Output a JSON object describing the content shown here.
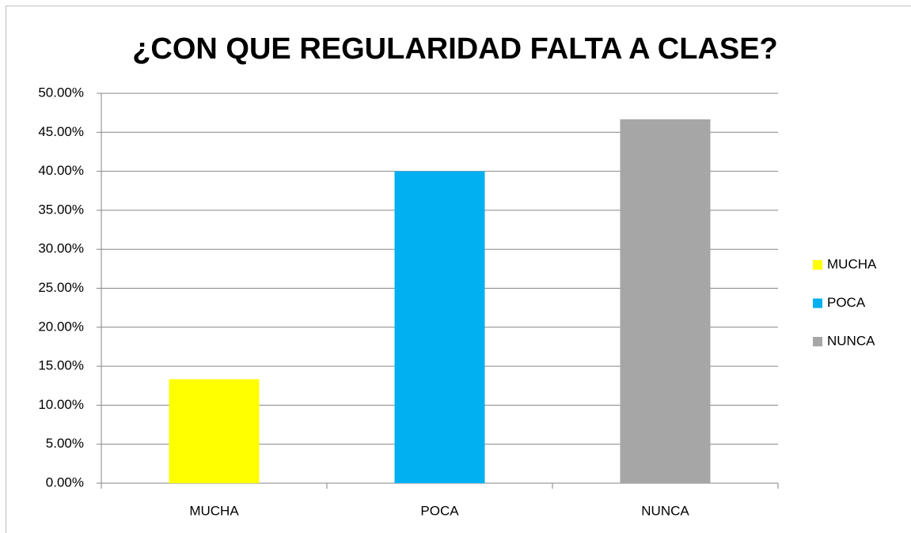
{
  "chart_data": {
    "type": "bar",
    "title": "¿CON QUE REGULARIDAD FALTA A CLASE?",
    "categories": [
      "MUCHA",
      "POCA",
      "NUNCA"
    ],
    "values": [
      13.33,
      40.0,
      46.67
    ],
    "colors": [
      "#ffff00",
      "#00b0f0",
      "#a6a6a6"
    ],
    "ylim": [
      0,
      50
    ],
    "yticks": [
      {
        "value": 0,
        "label": "0.00%"
      },
      {
        "value": 5,
        "label": "5.00%"
      },
      {
        "value": 10,
        "label": "10.00%"
      },
      {
        "value": 15,
        "label": "15.00%"
      },
      {
        "value": 20,
        "label": "20.00%"
      },
      {
        "value": 25,
        "label": "25.00%"
      },
      {
        "value": 30,
        "label": "30.00%"
      },
      {
        "value": 35,
        "label": "35.00%"
      },
      {
        "value": 40,
        "label": "40.00%"
      },
      {
        "value": 45,
        "label": "45.00%"
      },
      {
        "value": 50,
        "label": "50.00%"
      }
    ],
    "grid": true,
    "legend": "right"
  }
}
